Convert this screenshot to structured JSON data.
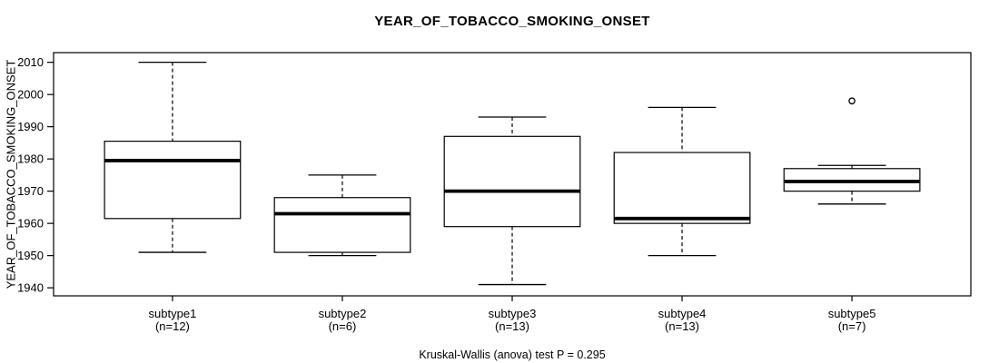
{
  "chart_data": {
    "type": "boxplot",
    "title": "YEAR_OF_TOBACCO_SMOKING_ONSET",
    "ylabel": "YEAR_OF_TOBACCO_SMOKING_ONSET",
    "xlabel": "",
    "annotation": "Kruskal-Wallis (anova) test P = 0.295",
    "ylim": [
      1937.5,
      2013.0
    ],
    "yticks": [
      1940,
      1950,
      1960,
      1970,
      1980,
      1990,
      2000,
      2010
    ],
    "grid": false,
    "legend": null,
    "categories": [
      {
        "label": "subtype1",
        "sublabel": "(n=12)",
        "n": 12,
        "stats": {
          "min": 1951,
          "q1": 1961.5,
          "median": 1979.5,
          "q3": 1985.5,
          "max": 2010
        },
        "outliers": []
      },
      {
        "label": "subtype2",
        "sublabel": "(n=6)",
        "n": 6,
        "stats": {
          "min": 1950,
          "q1": 1951,
          "median": 1963,
          "q3": 1968,
          "max": 1975
        },
        "outliers": []
      },
      {
        "label": "subtype3",
        "sublabel": "(n=13)",
        "n": 13,
        "stats": {
          "min": 1941,
          "q1": 1959,
          "median": 1970,
          "q3": 1987,
          "max": 1993
        },
        "outliers": []
      },
      {
        "label": "subtype4",
        "sublabel": "(n=13)",
        "n": 13,
        "stats": {
          "min": 1950,
          "q1": 1960,
          "median": 1961.5,
          "q3": 1982,
          "max": 1996
        },
        "outliers": []
      },
      {
        "label": "subtype5",
        "sublabel": "(n=7)",
        "n": 7,
        "stats": {
          "min": 1966,
          "q1": 1970,
          "median": 1973,
          "q3": 1977,
          "max": 1978
        },
        "outliers": [
          1998
        ]
      }
    ],
    "colors": {
      "line": "#000000",
      "box_fill": "#ffffff",
      "background": "#ffffff"
    }
  }
}
